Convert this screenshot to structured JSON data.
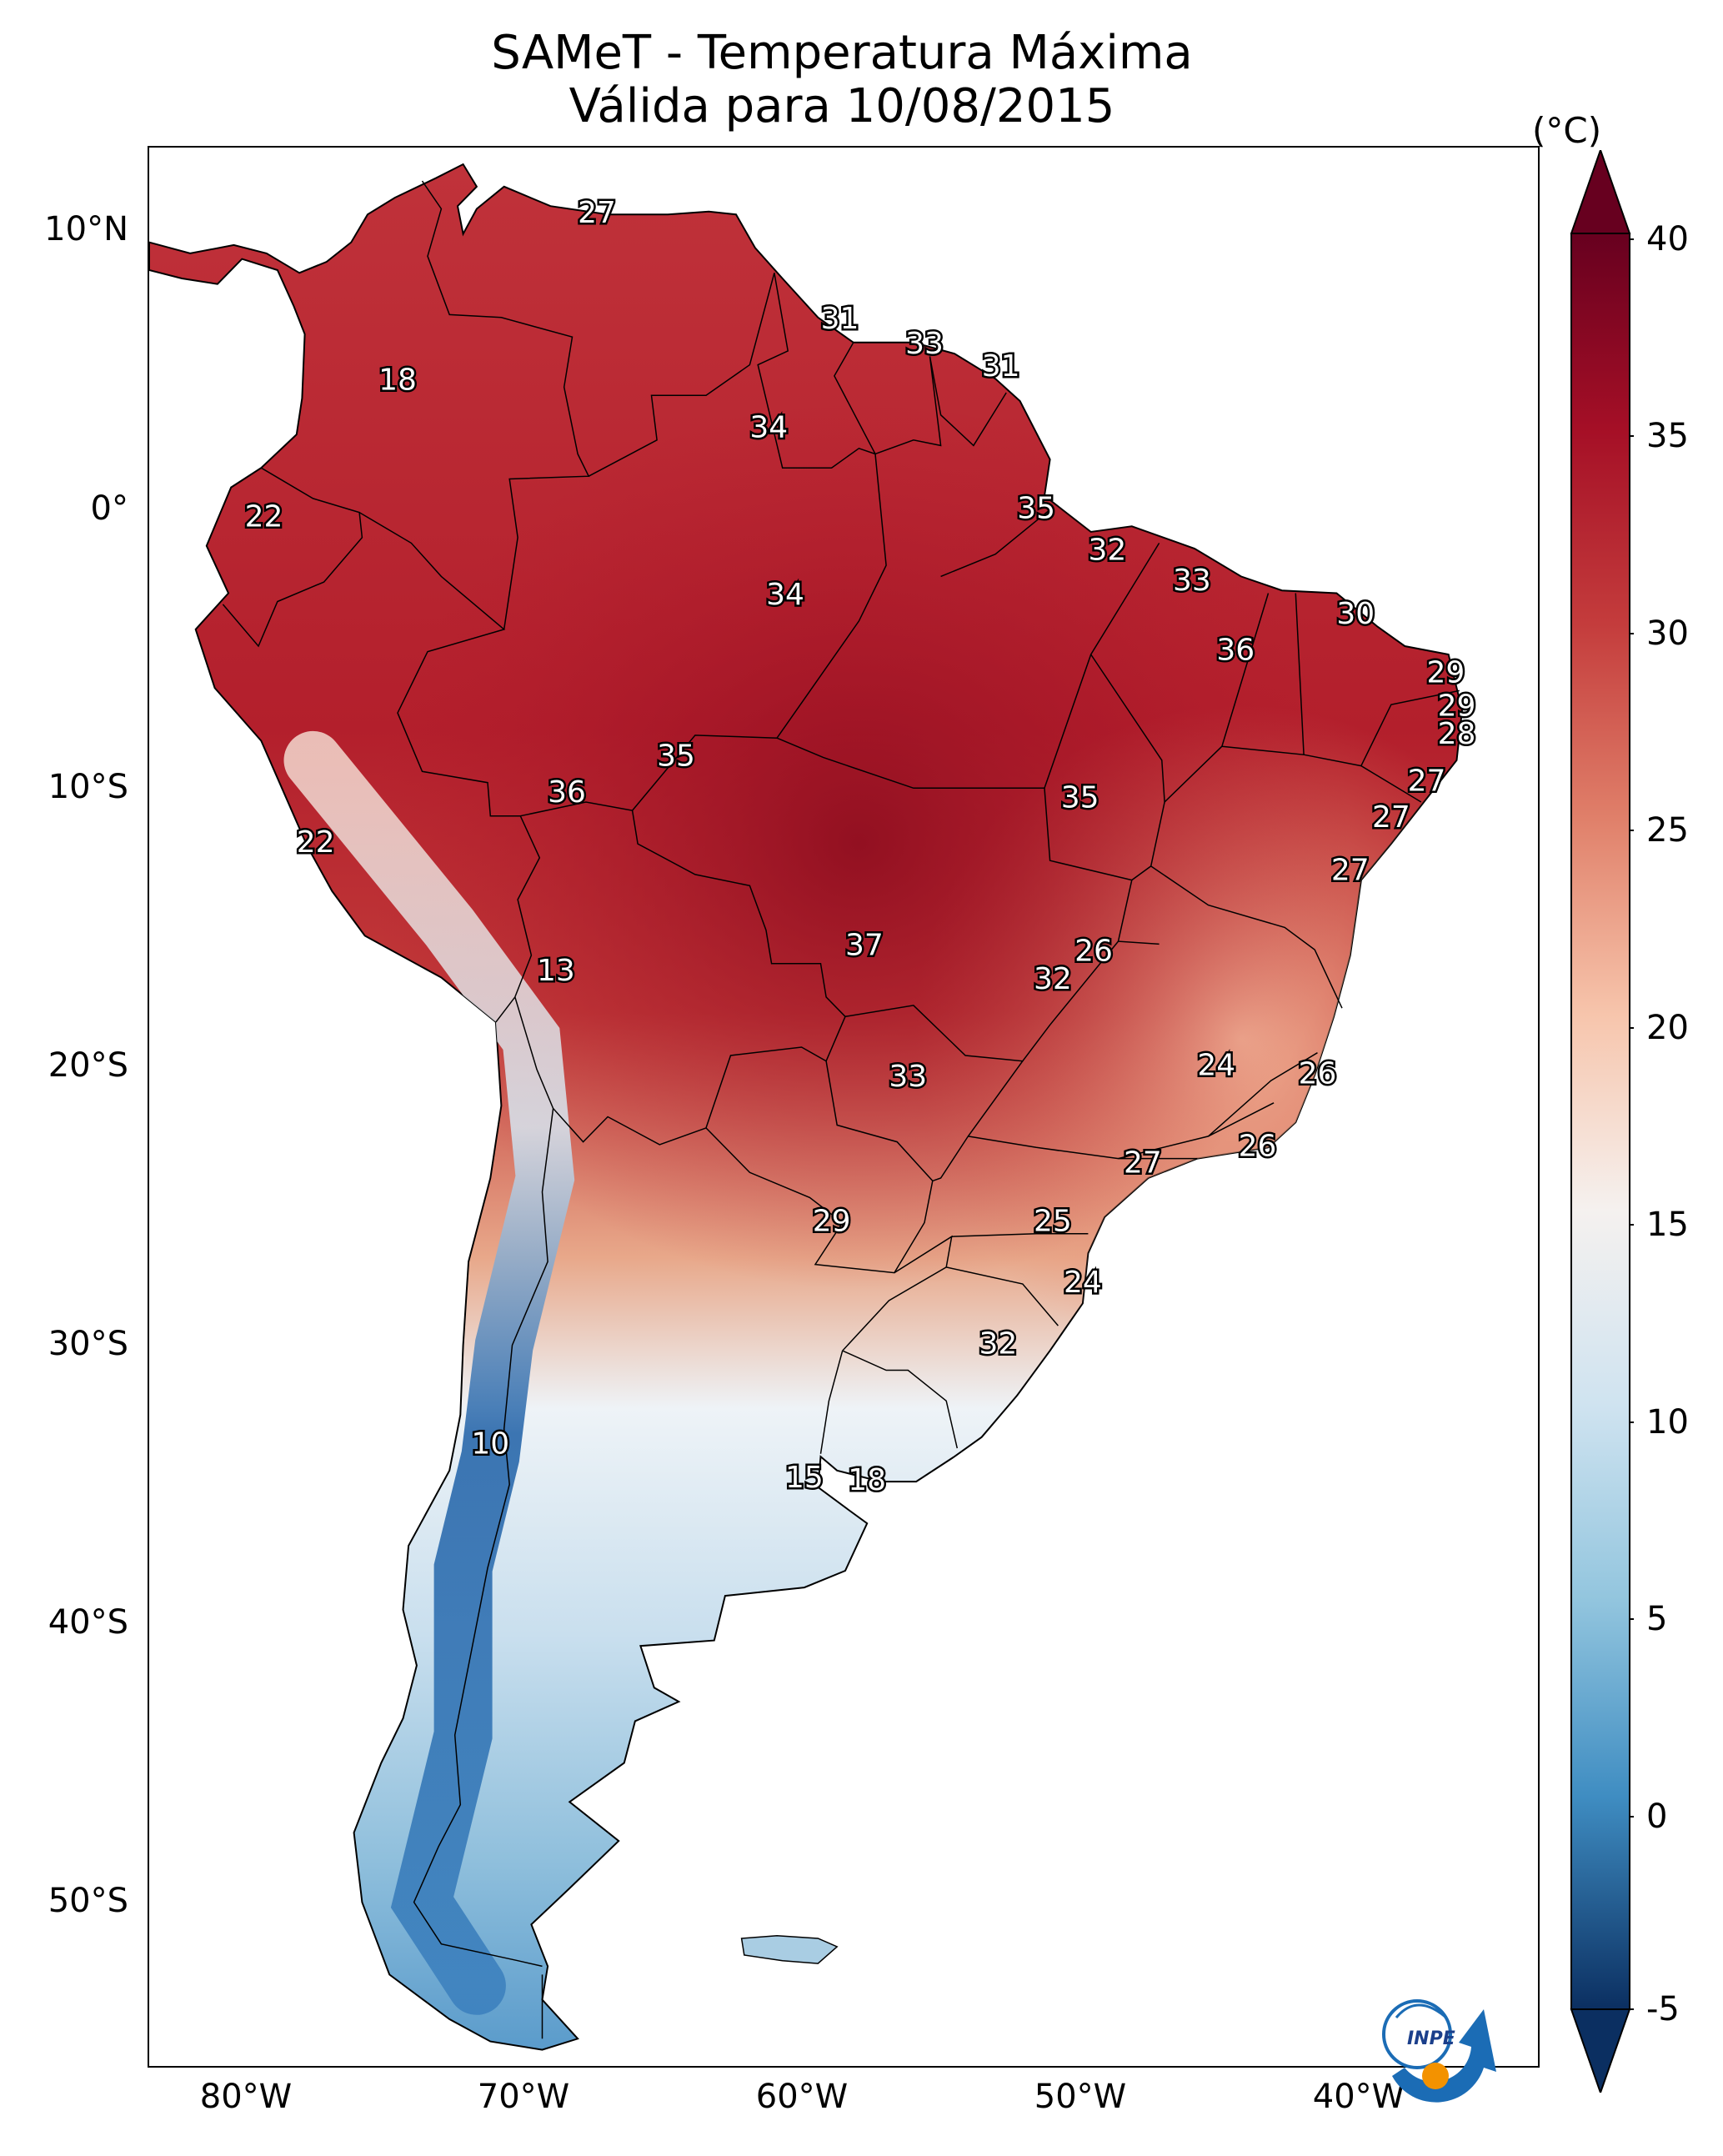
{
  "title": {
    "line1": "SAMeT - Temperatura Máxima",
    "line2": "Válida para 10/08/2015"
  },
  "colorbar": {
    "unit": "(°C)",
    "ticks": [
      "40",
      "35",
      "30",
      "25",
      "20",
      "15",
      "10",
      "5",
      "0",
      "-5"
    ],
    "min": -5,
    "max": 40,
    "extend": "both",
    "colors": [
      "#0b2f61",
      "#2166ac",
      "#4393c3",
      "#92c5de",
      "#d1e5f0",
      "#f7f7f7",
      "#fddbc7",
      "#f4a582",
      "#d6604d",
      "#b2182b",
      "#67001f"
    ]
  },
  "axes": {
    "lat_labels": [
      "10°N",
      "0°",
      "10°S",
      "20°S",
      "30°S",
      "40°S",
      "50°S"
    ],
    "lon_labels": [
      "80°W",
      "70°W",
      "60°W",
      "50°W",
      "40°W"
    ],
    "lon_range": [
      -83,
      -32
    ],
    "lat_range": [
      -56,
      13
    ]
  },
  "contour_labels": [
    {
      "text": "27",
      "lon": -66.6,
      "lat": 10.6
    },
    {
      "text": "18",
      "lon": -73.9,
      "lat": 4.6
    },
    {
      "text": "31",
      "lon": -57.7,
      "lat": 6.8
    },
    {
      "text": "33",
      "lon": -54.6,
      "lat": 5.9
    },
    {
      "text": "31",
      "lon": -51.8,
      "lat": 5.1
    },
    {
      "text": "34",
      "lon": -60.3,
      "lat": 2.9
    },
    {
      "text": "22",
      "lon": -78.8,
      "lat": -0.3
    },
    {
      "text": "35",
      "lon": -50.5,
      "lat": 0.0
    },
    {
      "text": "32",
      "lon": -47.9,
      "lat": -1.5
    },
    {
      "text": "34",
      "lon": -59.7,
      "lat": -3.1
    },
    {
      "text": "33",
      "lon": -44.8,
      "lat": -2.6
    },
    {
      "text": "30",
      "lon": -38.8,
      "lat": -3.8
    },
    {
      "text": "36",
      "lon": -43.2,
      "lat": -5.1
    },
    {
      "text": "29",
      "lon": -35.5,
      "lat": -5.9
    },
    {
      "text": "29",
      "lon": -35.1,
      "lat": -7.1
    },
    {
      "text": "28",
      "lon": -35.1,
      "lat": -8.1
    },
    {
      "text": "35",
      "lon": -63.7,
      "lat": -8.9
    },
    {
      "text": "36",
      "lon": -67.7,
      "lat": -10.2
    },
    {
      "text": "35",
      "lon": -48.9,
      "lat": -10.4
    },
    {
      "text": "27",
      "lon": -36.2,
      "lat": -9.8
    },
    {
      "text": "27",
      "lon": -37.5,
      "lat": -11.1
    },
    {
      "text": "27",
      "lon": -39.0,
      "lat": -13.0
    },
    {
      "text": "22",
      "lon": -76.9,
      "lat": -12.0
    },
    {
      "text": "37",
      "lon": -56.8,
      "lat": -15.7
    },
    {
      "text": "26",
      "lon": -48.4,
      "lat": -15.9
    },
    {
      "text": "32",
      "lon": -49.9,
      "lat": -16.9
    },
    {
      "text": "13",
      "lon": -68.1,
      "lat": -16.6
    },
    {
      "text": "24",
      "lon": -43.9,
      "lat": -20.0
    },
    {
      "text": "26",
      "lon": -40.2,
      "lat": -20.3
    },
    {
      "text": "33",
      "lon": -55.2,
      "lat": -20.4
    },
    {
      "text": "26",
      "lon": -42.4,
      "lat": -22.9
    },
    {
      "text": "27",
      "lon": -46.6,
      "lat": -23.5
    },
    {
      "text": "29",
      "lon": -58.0,
      "lat": -25.6
    },
    {
      "text": "25",
      "lon": -49.9,
      "lat": -25.6
    },
    {
      "text": "24",
      "lon": -48.8,
      "lat": -27.8
    },
    {
      "text": "32",
      "lon": -51.9,
      "lat": -30.0
    },
    {
      "text": "10",
      "lon": -70.5,
      "lat": -33.6
    },
    {
      "text": "15",
      "lon": -59.0,
      "lat": -34.8
    },
    {
      "text": "18",
      "lon": -56.7,
      "lat": -34.9
    }
  ],
  "logo": {
    "text": "INPE"
  }
}
